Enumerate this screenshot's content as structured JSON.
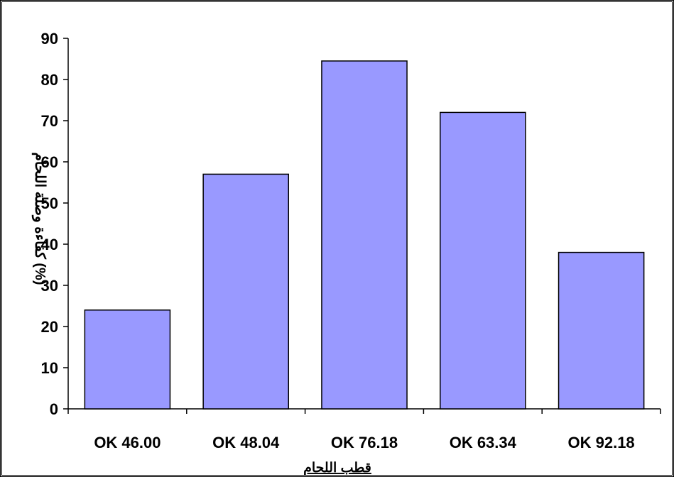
{
  "chart_data": {
    "type": "bar",
    "categories": [
      "OK 46.00",
      "OK 48.04",
      "OK 76.18",
      "OK 63.34",
      "OK 92.18"
    ],
    "values": [
      24,
      57,
      84.5,
      72,
      38
    ],
    "xlabel": "قطب اللحام",
    "ylabel": "كفاءة وصلة اللحام (%)",
    "ylim": [
      0,
      90
    ],
    "yticks": [
      0,
      10,
      20,
      30,
      40,
      50,
      60,
      70,
      80,
      90
    ],
    "grid": false,
    "legend": "none",
    "bar_color": "#9999ff",
    "bar_stroke": "#000000"
  }
}
